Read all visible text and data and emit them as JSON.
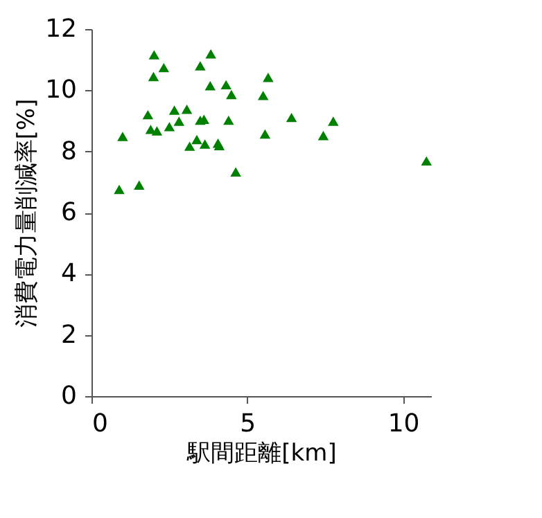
{
  "chart_data": {
    "type": "scatter",
    "xlabel": "駅間距離[km]",
    "ylabel": "消費電力量削減率[%]",
    "x": [
      0.89,
      1.0,
      1.53,
      1.81,
      1.9,
      2.01,
      1.99,
      2.1,
      2.32,
      2.5,
      2.66,
      2.81,
      3.06,
      3.15,
      3.38,
      3.49,
      3.49,
      3.61,
      3.64,
      3.83,
      3.81,
      4.06,
      4.1,
      4.32,
      4.4,
      4.49,
      4.63,
      5.51,
      5.57,
      5.67,
      6.42,
      7.44,
      7.76,
      10.75
    ],
    "series": [
      {
        "color": "#008000",
        "values": [
          6.76,
          8.49,
          6.9,
          9.2,
          8.72,
          11.16,
          10.45,
          8.67,
          10.74,
          8.81,
          9.35,
          8.99,
          9.38,
          8.17,
          8.39,
          10.8,
          9.02,
          9.05,
          8.24,
          11.19,
          10.15,
          8.27,
          8.19,
          10.18,
          9.02,
          9.86,
          7.33,
          9.83,
          8.57,
          10.42,
          9.11,
          8.52,
          8.99,
          7.69
        ]
      }
    ],
    "xlim": [
      0,
      10.9
    ],
    "xticks": [
      0,
      5,
      10
    ],
    "ylim": [
      0,
      12
    ],
    "yticks": [
      0,
      2,
      4,
      6,
      8,
      10,
      12
    ],
    "marker": "triangle",
    "grid": false
  }
}
